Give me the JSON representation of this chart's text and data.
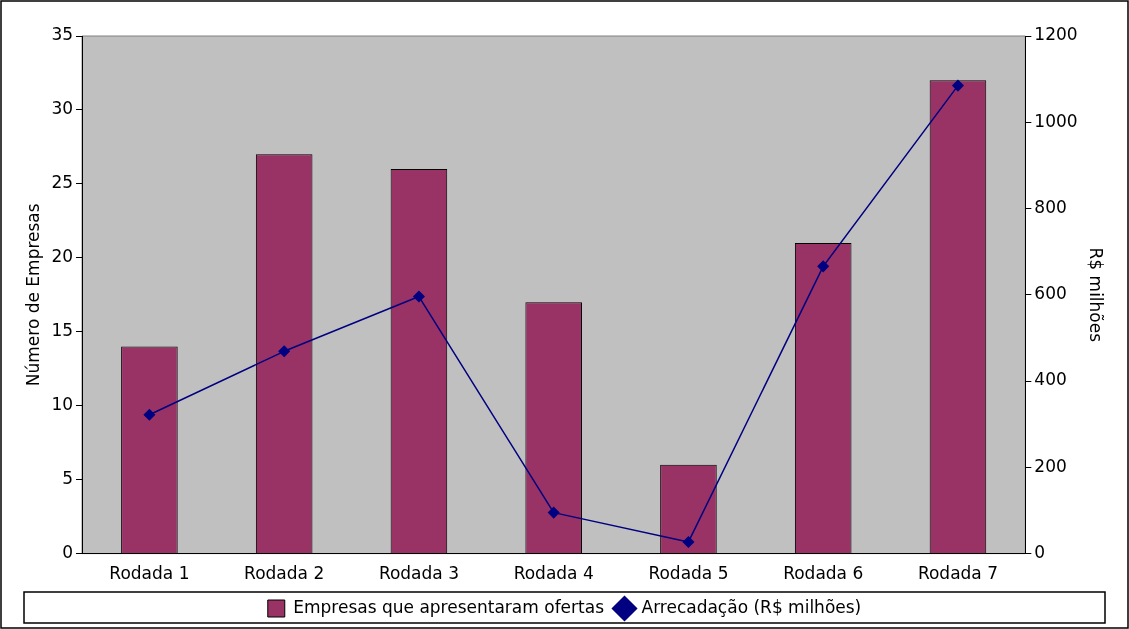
{
  "chart_data": {
    "type": "bar",
    "ylabel": "Número de Empresas",
    "y2label": "R$ milhões",
    "categories": [
      "Rodada 1",
      "Rodada 2",
      "Rodada 3",
      "Rodada 4",
      "Rodada 5",
      "Rodada 6",
      "Rodada 7"
    ],
    "series": [
      {
        "name": "Empresas que apresentaram ofertas",
        "color": "#993366",
        "values": [
          14,
          27,
          26,
          17,
          6,
          21,
          32
        ]
      },
      {
        "name": "Arrecadação (R$ milhões)",
        "type": "line",
        "axis": "y2",
        "color": "#000080",
        "values": [
          322,
          469,
          596,
          95,
          27,
          666,
          1085
        ]
      }
    ],
    "ylim": [
      0,
      35
    ],
    "yticks": [
      0,
      5,
      10,
      15,
      20,
      25,
      30,
      35
    ],
    "y2lim": [
      0,
      1200
    ],
    "y2ticks": [
      0,
      200,
      400,
      600,
      800,
      1000,
      1200
    ],
    "grid": false,
    "legend": "bottom",
    "marker": "diamond",
    "line_style": "solid"
  }
}
